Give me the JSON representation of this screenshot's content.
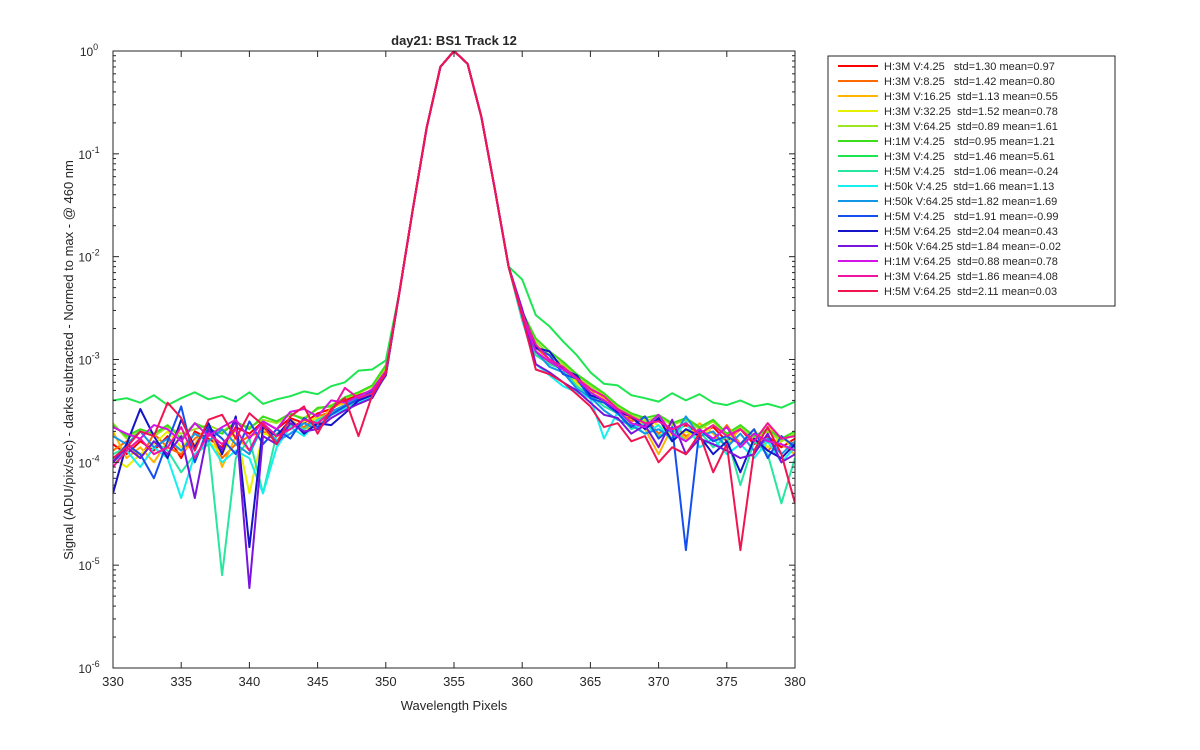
{
  "chart_data": {
    "type": "line",
    "title": "day21: BS1  Track 12",
    "xlabel": "Wavelength Pixels",
    "ylabel": "Signal (ADU/pix/sec) - darks subtracted - Normed to max - @ 460 nm",
    "xlim": [
      330,
      380
    ],
    "ylim": [
      1e-06,
      1
    ],
    "yscale": "log",
    "grid": false,
    "legend_position": "outside-right",
    "x_ticks": [
      "330",
      "335",
      "340",
      "345",
      "350",
      "355",
      "360",
      "365",
      "370",
      "375",
      "380"
    ],
    "y_ticks": [
      {
        "base": "10",
        "exp": "-6",
        "value": 1e-06
      },
      {
        "base": "10",
        "exp": "-5",
        "value": 1e-05
      },
      {
        "base": "10",
        "exp": "-4",
        "value": 0.0001
      },
      {
        "base": "10",
        "exp": "-3",
        "value": 0.001
      },
      {
        "base": "10",
        "exp": "-2",
        "value": 0.01
      },
      {
        "base": "10",
        "exp": "-1",
        "value": 0.1
      },
      {
        "base": "10",
        "exp": "0",
        "value": 1
      }
    ],
    "series": [
      {
        "name": "H:3M V:4.25   std=1.30 mean=0.97",
        "color": "#ff0000"
      },
      {
        "name": "H:3M V:8.25   std=1.42 mean=0.80",
        "color": "#ff6a00"
      },
      {
        "name": "H:3M V:16.25  std=1.13 mean=0.55",
        "color": "#ffb400"
      },
      {
        "name": "H:3M V:32.25  std=1.52 mean=0.78",
        "color": "#e6f000"
      },
      {
        "name": "H:3M V:64.25  std=0.89 mean=1.61",
        "color": "#9be61e"
      },
      {
        "name": "H:1M V:4.25   std=0.95 mean=1.21",
        "color": "#3cdc1e"
      },
      {
        "name": "H:3M V:4.25   std=1.46 mean=5.61",
        "color": "#1ee650"
      },
      {
        "name": "H:5M V:4.25   std=1.06 mean=-0.24",
        "color": "#28e6a0"
      },
      {
        "name": "H:50k V:4.25  std=1.66 mean=1.13",
        "color": "#14f0f0"
      },
      {
        "name": "H:50k V:64.25 std=1.82 mean=1.69",
        "color": "#1496e6"
      },
      {
        "name": "H:5M V:4.25   std=1.91 mean=-0.99",
        "color": "#1450f0"
      },
      {
        "name": "H:5M V:64.25  std=2.04 mean=0.43",
        "color": "#1414c8"
      },
      {
        "name": "H:50k V:64.25 std=1.84 mean=-0.02",
        "color": "#7814dc"
      },
      {
        "name": "H:1M V:64.25  std=0.88 mean=0.78",
        "color": "#d214e6"
      },
      {
        "name": "H:3M V:64.25  std=1.86 mean=4.08",
        "color": "#f014a0"
      },
      {
        "name": "H:5M V:64.25  std=2.11 mean=0.03",
        "color": "#f01450"
      }
    ],
    "peak": {
      "x": [
        349,
        350,
        351,
        352,
        353,
        354,
        355,
        356,
        357,
        358,
        359,
        360
      ],
      "y": [
        0.00065,
        0.00095,
        0.0045,
        0.03,
        0.18,
        0.7,
        1.0,
        0.75,
        0.23,
        0.045,
        0.008,
        0.0025
      ]
    },
    "left_wing_x": [
      330,
      331,
      332,
      333,
      334,
      335,
      336,
      337,
      338,
      339,
      340,
      341,
      342,
      343,
      344,
      345,
      346,
      347,
      348,
      349,
      350
    ],
    "right_wing_x": [
      360,
      361,
      362,
      363,
      364,
      365,
      366,
      367,
      368,
      369,
      370,
      371,
      372,
      373,
      374,
      375,
      376,
      377,
      378,
      379,
      380
    ],
    "left_wing_y": [
      [
        0.00015,
        0.00012,
        0.00016,
        0.00013,
        0.00018,
        0.00011,
        0.0002,
        0.00017,
        0.00014,
        0.00022,
        0.00019,
        0.00025,
        0.00021,
        0.00027,
        0.00024,
        0.0003,
        0.00033,
        0.0004,
        0.00045,
        0.0005,
        0.00075
      ],
      [
        0.00013,
        0.00016,
        0.00011,
        0.00019,
        0.00014,
        0.00012,
        0.00017,
        0.00021,
        0.00011,
        0.00015,
        0.00018,
        0.0002,
        0.00016,
        0.00024,
        0.00022,
        0.00028,
        0.00031,
        0.00036,
        0.00043,
        0.00048,
        0.00078
      ],
      [
        0.0002,
        0.00011,
        0.00014,
        0.0001,
        0.00016,
        0.00013,
        0.00015,
        0.00024,
        9e-05,
        0.00018,
        0.00013,
        0.00022,
        0.00015,
        0.00026,
        0.00021,
        0.00023,
        0.00034,
        0.00038,
        0.00041,
        0.00052,
        0.0008
      ],
      [
        0.00011,
        9e-05,
        0.00012,
        0.00015,
        0.0002,
        0.00014,
        0.00019,
        0.00016,
        0.00012,
        0.00021,
        5e-05,
        0.00019,
        0.00018,
        0.00022,
        0.00025,
        0.00027,
        0.00029,
        0.00037,
        0.0004,
        0.00046,
        0.00076
      ],
      [
        0.00024,
        0.00017,
        0.0002,
        0.00018,
        0.00022,
        0.00019,
        0.00021,
        0.00023,
        0.0002,
        0.00024,
        0.00022,
        0.00026,
        0.00024,
        0.00029,
        0.00027,
        0.00033,
        0.00036,
        0.00042,
        0.00047,
        0.00055,
        0.00085
      ],
      [
        0.00023,
        0.00018,
        0.00021,
        0.00019,
        0.00023,
        0.00017,
        0.00024,
        0.00021,
        0.00019,
        0.00025,
        0.00021,
        0.00028,
        0.00025,
        0.0003,
        0.00026,
        0.00034,
        0.00035,
        0.00043,
        0.00048,
        0.00056,
        0.00088
      ],
      [
        0.0004,
        0.00042,
        0.00038,
        0.00045,
        0.00036,
        0.00042,
        0.00048,
        0.00041,
        0.00044,
        0.00039,
        0.00048,
        0.00037,
        0.00041,
        0.00044,
        0.00049,
        0.00046,
        0.00055,
        0.0006,
        0.00078,
        0.0008,
        0.00098
      ],
      [
        0.00012,
        0.00014,
        0.00011,
        0.00016,
        0.00013,
        8e-05,
        0.00012,
        0.00015,
        8e-06,
        0.00011,
        0.00017,
        5e-05,
        0.00019,
        0.00023,
        0.00021,
        0.00026,
        0.0003,
        0.00034,
        0.00039,
        0.00044,
        0.00072
      ],
      [
        0.0001,
        0.00013,
        9e-05,
        0.00014,
        0.00011,
        4.5e-05,
        0.00012,
        0.00016,
        0.0001,
        0.00013,
        0.00011,
        5e-05,
        0.00014,
        0.00022,
        0.00018,
        0.00025,
        0.00029,
        0.00033,
        0.00038,
        0.00043,
        0.0007
      ],
      [
        0.00018,
        0.00015,
        0.0002,
        0.00014,
        0.00017,
        0.00013,
        0.00019,
        0.00016,
        0.00021,
        0.00015,
        0.00012,
        0.00023,
        0.00016,
        0.00019,
        0.00024,
        0.00021,
        0.00031,
        0.00036,
        0.00042,
        0.00047,
        0.00074
      ],
      [
        0.0001,
        0.00015,
        0.00012,
        7e-05,
        0.00016,
        0.00035,
        0.0001,
        0.00022,
        0.00017,
        0.00012,
        0.00025,
        0.00015,
        0.00021,
        0.00017,
        0.00027,
        0.00022,
        0.00029,
        0.00035,
        0.00041,
        0.00049,
        0.00071
      ],
      [
        5e-05,
        0.00015,
        0.00033,
        0.00018,
        0.00011,
        0.00026,
        0.00014,
        0.00024,
        0.00012,
        0.00028,
        1.5e-05,
        0.00022,
        0.00018,
        0.00026,
        0.00019,
        0.00024,
        0.00023,
        0.0003,
        0.0004,
        0.00045,
        0.0007
      ],
      [
        0.0001,
        0.00014,
        0.00011,
        0.00016,
        0.00012,
        0.00018,
        4.5e-05,
        0.00021,
        0.00013,
        0.00026,
        6e-06,
        0.00018,
        0.00015,
        0.00024,
        0.0002,
        0.00021,
        0.00027,
        0.00032,
        0.00037,
        0.00042,
        0.00072
      ],
      [
        0.00022,
        0.00019,
        0.00017,
        0.00023,
        0.00021,
        0.00016,
        0.00024,
        0.00018,
        0.00022,
        0.00026,
        0.00017,
        0.00025,
        0.00021,
        0.00031,
        0.00033,
        0.00028,
        0.0004,
        0.00038,
        0.00044,
        0.00051,
        0.00077
      ],
      [
        9e-05,
        0.00013,
        0.00017,
        0.00012,
        0.00014,
        0.00022,
        0.00011,
        0.00019,
        0.00015,
        0.00021,
        0.00013,
        0.00024,
        0.00018,
        0.00021,
        0.00026,
        0.00024,
        0.00031,
        0.00053,
        0.00042,
        0.00047,
        0.00073
      ],
      [
        0.00011,
        0.00014,
        0.0002,
        0.00018,
        0.00038,
        0.00027,
        0.00013,
        0.00026,
        0.00029,
        0.00017,
        0.0003,
        0.00023,
        0.00015,
        0.00028,
        0.00035,
        0.00019,
        0.00033,
        0.00042,
        0.00018,
        0.00045,
        0.00074
      ]
    ],
    "right_wing_y": [
      [
        0.0025,
        0.0012,
        0.0009,
        0.00085,
        0.00065,
        0.0005,
        0.00045,
        0.00031,
        0.00027,
        0.00022,
        0.00026,
        0.0002,
        0.00023,
        0.00019,
        0.00022,
        0.00016,
        0.00021,
        0.00015,
        0.00018,
        0.00014,
        0.00017
      ],
      [
        0.0024,
        0.0013,
        0.001,
        0.00082,
        0.0006,
        0.00048,
        0.0004,
        0.00033,
        0.00025,
        0.00028,
        0.00019,
        0.00024,
        0.00018,
        0.00021,
        0.00016,
        0.00023,
        0.00015,
        0.00019,
        0.00013,
        0.00017,
        0.00015
      ],
      [
        0.0026,
        0.0011,
        0.00095,
        0.0008,
        0.00062,
        0.00052,
        0.00042,
        0.00029,
        0.00028,
        0.00021,
        0.00012,
        0.00022,
        0.00017,
        0.00024,
        0.00019,
        0.00014,
        0.00022,
        0.00016,
        0.00024,
        0.00015,
        0.00012
      ],
      [
        0.0025,
        0.0012,
        0.0009,
        0.00088,
        0.00058,
        0.00049,
        0.00038,
        0.00035,
        0.00022,
        0.00026,
        0.00023,
        0.00018,
        0.0002,
        0.00017,
        0.00023,
        0.00019,
        0.00015,
        0.00021,
        0.00014,
        0.00018,
        0.00013
      ],
      [
        0.0028,
        0.0015,
        0.0011,
        0.0009,
        0.0007,
        0.00055,
        0.00046,
        0.00034,
        0.00029,
        0.00025,
        0.00028,
        0.00023,
        0.00026,
        0.00021,
        0.00025,
        0.00018,
        0.00022,
        0.00017,
        0.0002,
        0.00016,
        0.00019
      ],
      [
        0.0029,
        0.0016,
        0.0012,
        0.00095,
        0.00072,
        0.00058,
        0.00047,
        0.00036,
        0.0003,
        0.00027,
        0.00029,
        0.00024,
        0.00027,
        0.00022,
        0.00026,
        0.00019,
        0.00023,
        0.00018,
        0.00021,
        0.00017,
        0.0002
      ],
      [
        0.006,
        0.0027,
        0.0021,
        0.0015,
        0.0011,
        0.00075,
        0.00058,
        0.00056,
        0.00045,
        0.00042,
        0.00039,
        0.00047,
        0.0004,
        0.00046,
        0.00038,
        0.00036,
        0.0004,
        0.00035,
        0.00037,
        0.00034,
        0.00039
      ],
      [
        0.0026,
        0.0011,
        0.0009,
        0.0008,
        0.00055,
        0.00045,
        0.00035,
        0.0003,
        0.00021,
        0.00024,
        0.00018,
        0.00021,
        0.00016,
        0.0002,
        0.00014,
        0.00018,
        6e-05,
        0.00016,
        0.00012,
        4e-05,
        0.00011
      ],
      [
        0.0024,
        0.0009,
        0.0007,
        0.00055,
        0.00048,
        0.00042,
        0.00017,
        0.00031,
        0.00024,
        0.00019,
        0.00023,
        0.00016,
        0.00025,
        0.00014,
        0.00017,
        0.00012,
        0.00015,
        0.00011,
        0.00016,
        0.0001,
        0.00014
      ],
      [
        0.0027,
        0.0012,
        0.00085,
        0.00075,
        0.00052,
        0.00043,
        0.00032,
        0.00026,
        0.00023,
        0.00019,
        0.00021,
        0.00017,
        0.00028,
        0.00018,
        0.0002,
        0.00014,
        0.00019,
        0.00013,
        0.00017,
        0.00012,
        0.00016
      ],
      [
        0.0028,
        0.0013,
        0.0011,
        0.00072,
        0.00065,
        0.00042,
        0.00038,
        0.0003,
        0.00022,
        0.00028,
        0.00017,
        0.00022,
        1.4e-05,
        0.00021,
        0.00016,
        0.00018,
        0.00015,
        0.00021,
        0.00011,
        0.00018,
        0.00014
      ],
      [
        0.003,
        0.0013,
        0.0012,
        0.0008,
        0.0007,
        0.00045,
        0.0004,
        0.00031,
        0.00028,
        0.00021,
        0.00027,
        0.00016,
        0.00021,
        0.00018,
        0.00012,
        0.00016,
        8e-05,
        0.00017,
        0.00013,
        0.00011,
        0.00015
      ],
      [
        0.0031,
        0.0009,
        0.00075,
        0.0006,
        0.0005,
        0.00038,
        0.00029,
        0.00027,
        0.00019,
        0.00023,
        0.00014,
        0.00026,
        0.00012,
        0.00017,
        0.00015,
        0.00013,
        0.00011,
        0.00012,
        0.00019,
        0.0001,
        0.00012
      ],
      [
        0.0027,
        0.0012,
        0.00095,
        0.0008,
        0.00065,
        0.00048,
        0.0004,
        0.00032,
        0.00024,
        0.00022,
        0.00029,
        0.00019,
        0.00016,
        0.00021,
        0.00017,
        0.00022,
        0.00014,
        0.00019,
        0.00016,
        0.00015,
        0.00013
      ],
      [
        0.0028,
        0.0014,
        0.001,
        0.00085,
        0.00066,
        0.00052,
        0.00044,
        0.00033,
        0.00028,
        0.00024,
        0.00025,
        0.00021,
        0.00024,
        0.00019,
        0.00023,
        0.00018,
        0.00021,
        0.00016,
        0.00024,
        0.00017,
        0.00018
      ],
      [
        0.0026,
        0.0008,
        0.00072,
        0.0006,
        0.00046,
        0.00035,
        0.00022,
        0.00024,
        0.00016,
        0.00018,
        0.0001,
        0.00014,
        0.00012,
        0.00019,
        8e-05,
        0.00015,
        1.4e-05,
        0.00013,
        0.00022,
        0.00012,
        4e-05
      ]
    ]
  }
}
